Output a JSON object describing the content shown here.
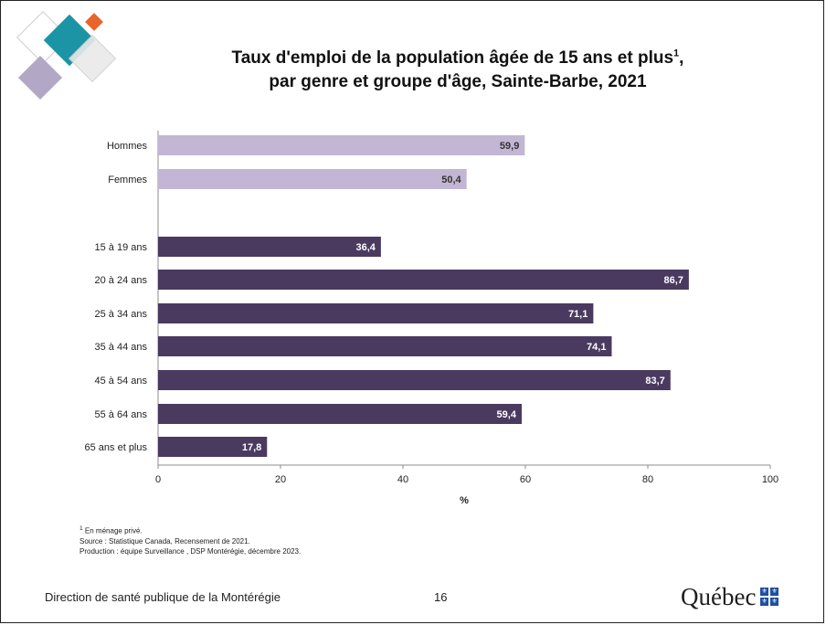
{
  "title": {
    "line1": "Taux d'emploi de la population âgée de 15 ans et plus",
    "sup": "1",
    "line1_end": ",",
    "line2": "par genre et groupe d'âge, Sainte-Barbe, 2021"
  },
  "colors": {
    "gender_bar": "#c3b6d4",
    "age_bar": "#4a3a60",
    "deco_teal": "#1b95a5",
    "deco_orange": "#e8642b",
    "deco_lavender": "#b3a7c6"
  },
  "chart_data": {
    "type": "bar",
    "orientation": "horizontal",
    "categories": [
      "Hommes",
      "Femmes",
      "15 à 19 ans",
      "20 à 24 ans",
      "25 à 34 ans",
      "35 à 44 ans",
      "45 à 54 ans",
      "55 à 64 ans",
      "65 ans et plus"
    ],
    "values": [
      59.9,
      50.4,
      36.4,
      86.7,
      71.1,
      74.1,
      83.7,
      59.4,
      17.8
    ],
    "value_labels": [
      "59,9",
      "50,4",
      "36,4",
      "86,7",
      "71,1",
      "74,1",
      "83,7",
      "59,4",
      "17,8"
    ],
    "groups": [
      "genre",
      "genre",
      "age",
      "age",
      "age",
      "age",
      "age",
      "age",
      "age"
    ],
    "xlabel": "%",
    "xlim": [
      0,
      100
    ],
    "xticks": [
      0,
      20,
      40,
      60,
      80,
      100
    ],
    "grid": false,
    "legend": "none"
  },
  "notes": {
    "note1_sup": "1",
    "note1": " En ménage privé.",
    "source": "Source : Statistique Canada, Recensement de 2021.",
    "production": "Production : équipe Surveillance , DSP Montérégie, décembre 2023."
  },
  "footer": {
    "org": "Direction de santé publique de la Montérégie",
    "page": "16",
    "logo_text": "Québec"
  }
}
